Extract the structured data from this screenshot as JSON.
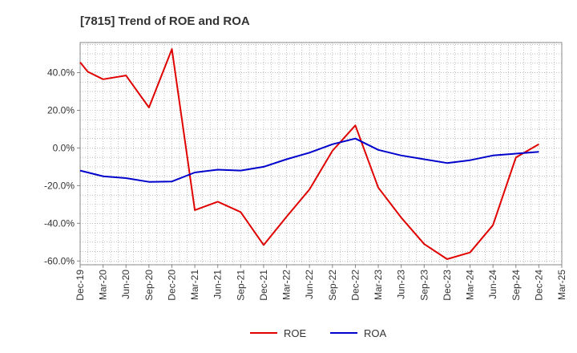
{
  "chart_data": {
    "type": "line",
    "title": "[7815]  Trend of ROE and ROA",
    "x": [
      "Dec-19",
      "Mar-20",
      "Jun-20",
      "Sep-20",
      "Dec-20",
      "Mar-21",
      "Jun-21",
      "Sep-21",
      "Dec-21",
      "Mar-22",
      "Jun-22",
      "Sep-22",
      "Dec-22",
      "Mar-23",
      "Jun-23",
      "Sep-23",
      "Dec-23",
      "Mar-24",
      "Jun-24",
      "Sep-24",
      "Dec-24",
      "Mar-25"
    ],
    "series": [
      {
        "name": "ROE",
        "color": "#e00000",
        "x": [
          "Dec-19",
          "Jan-20",
          "Mar-20",
          "Jun-20",
          "Sep-20",
          "Dec-20",
          "Mar-21",
          "Jun-21",
          "Sep-21",
          "Dec-21",
          "Mar-22",
          "Jun-22",
          "Sep-22",
          "Dec-22",
          "Mar-23",
          "Jun-23",
          "Sep-23",
          "Dec-23",
          "Mar-24",
          "Jun-24",
          "Sep-24",
          "Dec-24"
        ],
        "values": [
          45.5,
          40.5,
          36.5,
          38.5,
          21.5,
          52.5,
          -33.0,
          -28.5,
          -34.0,
          -51.5,
          -36.5,
          -22.0,
          -1.5,
          12.0,
          -21.0,
          -37.0,
          -51.0,
          -59.0,
          -55.5,
          -41.0,
          -5.0,
          2.0
        ]
      },
      {
        "name": "ROA",
        "color": "#0000cc",
        "x": [
          "Dec-19",
          "Mar-20",
          "Jun-20",
          "Sep-20",
          "Dec-20",
          "Mar-21",
          "Jun-21",
          "Sep-21",
          "Dec-21",
          "Mar-22",
          "Jun-22",
          "Sep-22",
          "Dec-22",
          "Mar-23",
          "Jun-23",
          "Sep-23",
          "Dec-23",
          "Mar-24",
          "Jun-24",
          "Sep-24",
          "Dec-24"
        ],
        "values": [
          -12.0,
          -15.0,
          -16.0,
          -18.0,
          -17.8,
          -13.0,
          -11.5,
          -12.0,
          -10.0,
          -6.0,
          -2.5,
          2.0,
          5.0,
          -1.0,
          -4.0,
          -6.0,
          -8.0,
          -6.5,
          -4.0,
          -3.0,
          -2.0
        ]
      }
    ],
    "y_ticks": [
      "40.0%",
      "20.0%",
      "0.0%",
      "-20.0%",
      "-40.0%",
      "-60.0%"
    ],
    "y_tick_values": [
      40,
      20,
      0,
      -20,
      -40,
      -60
    ],
    "ylim": [
      -62,
      56
    ],
    "grid": true,
    "legend": {
      "placement": "bottom",
      "items": [
        "ROE",
        "ROA"
      ]
    },
    "frame_color": "#888888",
    "grid_color": "#999999"
  }
}
